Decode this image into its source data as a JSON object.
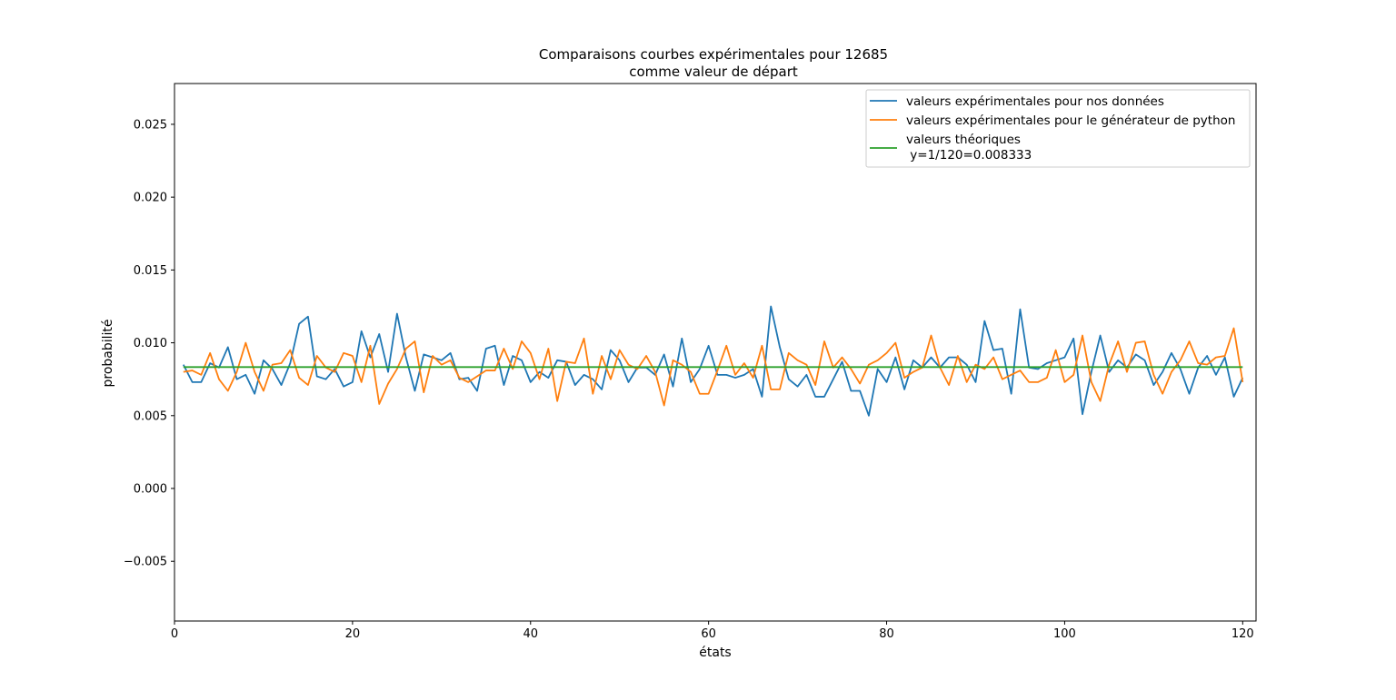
{
  "chart_data": {
    "type": "line",
    "title_lines": [
      "Comparaisons courbes expérimentales pour 12685",
      "comme valeur de départ"
    ],
    "xlabel": "états",
    "ylabel": "probabilité",
    "xlim": [
      0,
      121.5
    ],
    "ylim": [
      -0.0091,
      0.0278
    ],
    "xticks": [
      0,
      20,
      40,
      60,
      80,
      100,
      120
    ],
    "xtick_labels": [
      "0",
      "20",
      "40",
      "60",
      "80",
      "100",
      "120"
    ],
    "yticks": [
      -0.005,
      0.0,
      0.005,
      0.01,
      0.015,
      0.02,
      0.025
    ],
    "ytick_labels": [
      "−0.005",
      "0.000",
      "0.005",
      "0.010",
      "0.015",
      "0.020",
      "0.025"
    ],
    "grid": false,
    "legend_position": "top-right",
    "x": [
      1,
      2,
      3,
      4,
      5,
      6,
      7,
      8,
      9,
      10,
      11,
      12,
      13,
      14,
      15,
      16,
      17,
      18,
      19,
      20,
      21,
      22,
      23,
      24,
      25,
      26,
      27,
      28,
      29,
      30,
      31,
      32,
      33,
      34,
      35,
      36,
      37,
      38,
      39,
      40,
      41,
      42,
      43,
      44,
      45,
      46,
      47,
      48,
      49,
      50,
      51,
      52,
      53,
      54,
      55,
      56,
      57,
      58,
      59,
      60,
      61,
      62,
      63,
      64,
      65,
      66,
      67,
      68,
      69,
      70,
      71,
      72,
      73,
      74,
      75,
      76,
      77,
      78,
      79,
      80,
      81,
      82,
      83,
      84,
      85,
      86,
      87,
      88,
      89,
      90,
      91,
      92,
      93,
      94,
      95,
      96,
      97,
      98,
      99,
      100,
      101,
      102,
      103,
      104,
      105,
      106,
      107,
      108,
      109,
      110,
      111,
      112,
      113,
      114,
      115,
      116,
      117,
      118,
      119,
      120
    ],
    "series": [
      {
        "name": "valeurs expérimentales pour nos données",
        "color": "#1f77b4",
        "values": [
          0.0085,
          0.0073,
          0.0073,
          0.0086,
          0.0083,
          0.0097,
          0.0075,
          0.0078,
          0.0065,
          0.0088,
          0.0082,
          0.0071,
          0.0086,
          0.0113,
          0.0118,
          0.0077,
          0.0075,
          0.0082,
          0.007,
          0.0073,
          0.0108,
          0.009,
          0.0106,
          0.008,
          0.012,
          0.009,
          0.0067,
          0.0092,
          0.009,
          0.0088,
          0.0093,
          0.0075,
          0.0076,
          0.0067,
          0.0096,
          0.0098,
          0.0071,
          0.0091,
          0.0088,
          0.0073,
          0.008,
          0.0076,
          0.0088,
          0.0087,
          0.0071,
          0.0078,
          0.0075,
          0.0068,
          0.0095,
          0.0088,
          0.0073,
          0.0083,
          0.0083,
          0.0078,
          0.0092,
          0.007,
          0.0103,
          0.0073,
          0.0082,
          0.0098,
          0.0078,
          0.0078,
          0.0076,
          0.0078,
          0.0082,
          0.0063,
          0.0125,
          0.0097,
          0.0075,
          0.007,
          0.0078,
          0.0063,
          0.0063,
          0.0075,
          0.0087,
          0.0067,
          0.0067,
          0.005,
          0.0082,
          0.0073,
          0.009,
          0.0068,
          0.0088,
          0.0083,
          0.009,
          0.0083,
          0.009,
          0.009,
          0.0085,
          0.0073,
          0.0115,
          0.0095,
          0.0096,
          0.0065,
          0.0123,
          0.0083,
          0.0082,
          0.0086,
          0.0088,
          0.009,
          0.0103,
          0.0051,
          0.008,
          0.0105,
          0.008,
          0.0088,
          0.0083,
          0.0092,
          0.0088,
          0.0071,
          0.008,
          0.0093,
          0.0082,
          0.0065,
          0.0083,
          0.0091,
          0.0078,
          0.009,
          0.0063,
          0.0076
        ]
      },
      {
        "name": "valeurs expérimentales pour le générateur de python",
        "color": "#ff7f0e",
        "values": [
          0.008,
          0.0081,
          0.0078,
          0.0093,
          0.0075,
          0.0067,
          0.008,
          0.01,
          0.008,
          0.0067,
          0.0085,
          0.0086,
          0.0095,
          0.0076,
          0.0071,
          0.0091,
          0.0083,
          0.008,
          0.0093,
          0.0091,
          0.0073,
          0.0098,
          0.0058,
          0.0072,
          0.0082,
          0.0096,
          0.0101,
          0.0066,
          0.0091,
          0.0085,
          0.0088,
          0.0076,
          0.0073,
          0.0077,
          0.0081,
          0.0081,
          0.0096,
          0.0082,
          0.0101,
          0.0093,
          0.0075,
          0.0096,
          0.006,
          0.0087,
          0.0086,
          0.0103,
          0.0065,
          0.0091,
          0.0075,
          0.0095,
          0.0085,
          0.0082,
          0.0091,
          0.008,
          0.0057,
          0.0088,
          0.0085,
          0.008,
          0.0065,
          0.0065,
          0.0081,
          0.0098,
          0.0078,
          0.0086,
          0.0076,
          0.0098,
          0.0068,
          0.0068,
          0.0093,
          0.0088,
          0.0085,
          0.0071,
          0.0101,
          0.0083,
          0.009,
          0.0082,
          0.0072,
          0.0085,
          0.0088,
          0.0093,
          0.01,
          0.0076,
          0.008,
          0.0083,
          0.0105,
          0.0083,
          0.0071,
          0.0091,
          0.0073,
          0.0085,
          0.0082,
          0.009,
          0.0075,
          0.0078,
          0.0081,
          0.0073,
          0.0073,
          0.0076,
          0.0095,
          0.0073,
          0.0078,
          0.0105,
          0.0073,
          0.006,
          0.0085,
          0.0101,
          0.008,
          0.01,
          0.0101,
          0.0078,
          0.0065,
          0.008,
          0.0088,
          0.0101,
          0.0086,
          0.0085,
          0.009,
          0.0091,
          0.011,
          0.0073
        ]
      },
      {
        "name_lines": [
          "valeurs théoriques",
          " y=1/120=0.008333"
        ],
        "color": "#2ca02c",
        "values": [
          0.008333,
          0.008333
        ],
        "x": [
          1,
          120
        ]
      }
    ]
  }
}
